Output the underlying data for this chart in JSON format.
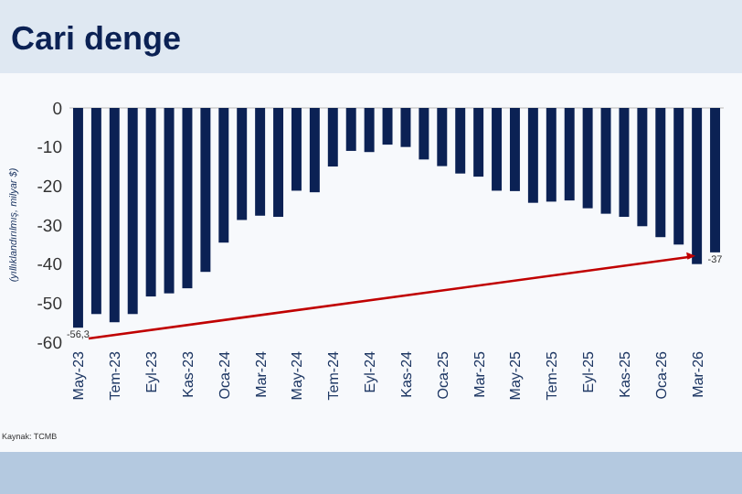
{
  "chart_data": {
    "type": "bar",
    "title": "Cari denge",
    "ylabel": "(yıllıklandırılmış, milyar $)",
    "annotations": [
      "Kaynak: TCMB"
    ],
    "categories": [
      "May-23",
      null,
      "Tem-23",
      null,
      "Eyl-23",
      null,
      "Kas-23",
      null,
      "Oca-24",
      null,
      "Mar-24",
      null,
      "May-24",
      null,
      "Tem-24",
      null,
      "Eyl-24",
      null,
      "Kas-24",
      null,
      "Oca-25",
      null,
      "Mar-25",
      null,
      "May-25",
      null,
      "Tem-25",
      null,
      "Eyl-25",
      null,
      "Kas-25",
      null,
      "Oca-26",
      null,
      "Mar-26",
      null
    ],
    "values": [
      -56.3,
      -52.8,
      -54.9,
      -52.8,
      -48.3,
      -47.5,
      -46.2,
      -42.0,
      -34.5,
      -28.7,
      -27.6,
      -27.9,
      -21.2,
      -21.6,
      -15.0,
      -11.0,
      -11.3,
      -9.4,
      -10.0,
      -13.2,
      -14.9,
      -16.8,
      -17.6,
      -21.2,
      -21.3,
      -24.3,
      -24.0,
      -23.7,
      -25.7,
      -27.1,
      -27.9,
      -30.3,
      -33.1,
      -35.0,
      -40.0,
      -37
    ],
    "value_labels": [
      "-56,3",
      null,
      null,
      null,
      null,
      null,
      null,
      null,
      null,
      null,
      null,
      null,
      null,
      null,
      null,
      null,
      null,
      null,
      null,
      null,
      null,
      null,
      null,
      null,
      null,
      null,
      null,
      null,
      null,
      null,
      null,
      null,
      null,
      null,
      null,
      "-37"
    ],
    "color": "#0b2154",
    "ylim": [
      -60,
      0
    ],
    "yticks": [
      0,
      -10,
      -20,
      -30,
      -40,
      -50,
      -60
    ],
    "grid": false
  }
}
